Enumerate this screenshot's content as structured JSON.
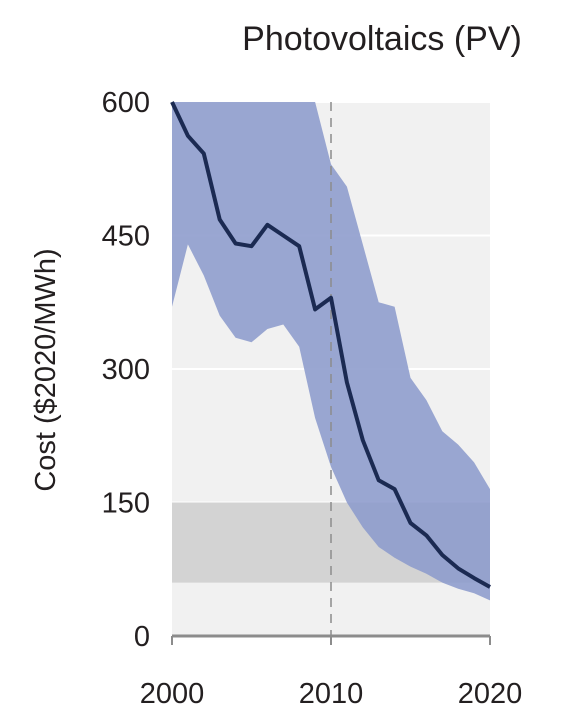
{
  "chart_data": {
    "type": "line",
    "title": "Photovoltaics (PV)",
    "ylabel": "Cost ($2020/MWh)",
    "xlabel": "",
    "xlim": [
      2000,
      2020
    ],
    "ylim": [
      0,
      600
    ],
    "x_ticks": [
      "2000",
      "2010",
      "2020"
    ],
    "y_ticks": [
      "0",
      "150",
      "300",
      "450",
      "600"
    ],
    "grid": true,
    "colors": {
      "line": "#1b2a52",
      "band": "#8c9bcc",
      "fossil_range": "#d3d3d3",
      "plot_bg": "#f1f1f1",
      "grid": "#ffffff"
    },
    "reference_line_x": 2010,
    "fossil_cost_range": [
      60,
      150
    ],
    "series": [
      {
        "x": [
          2000,
          2001,
          2002,
          2003,
          2004,
          2005,
          2006,
          2007,
          2008,
          2009,
          2010,
          2011,
          2012,
          2013,
          2014,
          2015,
          2016,
          2017,
          2018,
          2019,
          2020
        ],
        "values": [
          600,
          562,
          542,
          468,
          441,
          438,
          462,
          450,
          438,
          367,
          380,
          285,
          220,
          175,
          165,
          127,
          113,
          91,
          76,
          65,
          55
        ]
      }
    ],
    "band": {
      "x": [
        2000,
        2001,
        2002,
        2003,
        2004,
        2005,
        2006,
        2007,
        2008,
        2009,
        2010,
        2011,
        2012,
        2013,
        2014,
        2015,
        2016,
        2017,
        2018,
        2019,
        2020
      ],
      "lower": [
        370,
        440,
        405,
        360,
        335,
        330,
        345,
        350,
        325,
        245,
        190,
        150,
        122,
        100,
        88,
        78,
        70,
        60,
        53,
        48,
        40
      ],
      "upper": [
        600,
        600,
        600,
        600,
        600,
        600,
        600,
        600,
        600,
        600,
        530,
        505,
        440,
        375,
        370,
        290,
        265,
        230,
        215,
        195,
        165
      ]
    }
  }
}
